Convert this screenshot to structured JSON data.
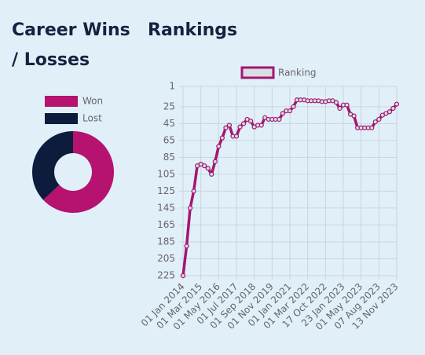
{
  "chart_data": [
    {
      "type": "doughnut",
      "title": "Career Wins / Losses",
      "categories": [
        "Won",
        "Lost"
      ],
      "values": [
        63,
        37
      ],
      "colors": [
        "#b5136f",
        "#0d1b3c"
      ]
    },
    {
      "type": "line",
      "title": "Rankings",
      "categories": [
        "01 Jan 2014",
        null,
        null,
        null,
        null,
        "01 Mar 2015",
        null,
        null,
        null,
        null,
        "01 May 2016",
        null,
        null,
        null,
        null,
        "01 Jul 2017",
        null,
        null,
        null,
        null,
        "01 Sep 2018",
        null,
        null,
        null,
        null,
        "01 Nov 2019",
        null,
        null,
        null,
        null,
        "01 Jan 2021",
        null,
        null,
        null,
        null,
        "01 Mar 2022",
        null,
        null,
        null,
        null,
        "17 Oct 2022",
        null,
        null,
        null,
        null,
        "23 Jan 2023",
        null,
        null,
        null,
        null,
        "01 May 2023",
        null,
        null,
        null,
        null,
        "07 Aug 2023",
        null,
        null,
        null,
        null,
        "13 Nov 2023"
      ],
      "series": [
        {
          "name": "Ranking",
          "color": "#a3176f",
          "values": [
            225,
            190,
            145,
            125,
            95,
            93,
            95,
            98,
            105,
            90,
            72,
            62,
            50,
            47,
            60,
            60,
            49,
            45,
            40,
            42,
            49,
            47,
            47,
            38,
            40,
            40,
            40,
            40,
            33,
            30,
            30,
            25,
            17,
            17,
            17,
            18,
            18,
            18,
            18,
            19,
            19,
            18,
            18,
            20,
            27,
            23,
            23,
            34,
            36,
            50,
            50,
            50,
            50,
            50,
            43,
            40,
            35,
            33,
            31,
            27,
            22
          ]
        }
      ],
      "ylim": [
        1,
        225
      ],
      "reverse": true,
      "yticks": [
        1,
        25,
        45,
        65,
        85,
        105,
        125,
        145,
        165,
        185,
        205,
        225
      ],
      "grid": true
    }
  ]
}
